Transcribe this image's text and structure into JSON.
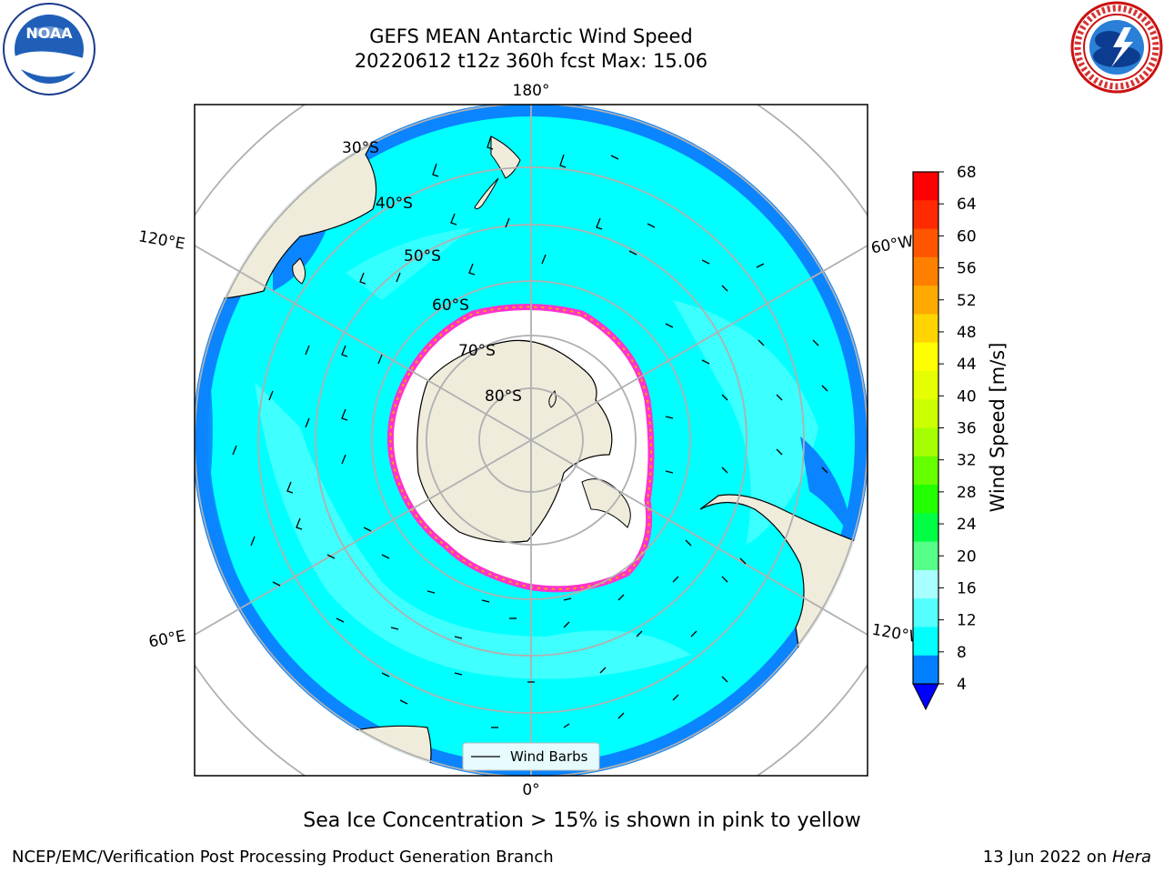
{
  "title": {
    "line1": "GEFS MEAN Antarctic Wind Speed",
    "line2": "20220612 t12z 360h fcst   Max: 15.06"
  },
  "map": {
    "projection": "south-polar-stereographic",
    "longitude_labels": {
      "top": "180°",
      "bottom": "0°",
      "upper_left": "120°E",
      "upper_right": "120°W",
      "lower_left": "60°E",
      "lower_right": "60°W"
    },
    "latitude_labels": [
      "30°S",
      "40°S",
      "50°S",
      "60°S",
      "70°S",
      "80°S"
    ],
    "legend_label": "Wind Barbs",
    "colors": {
      "land": "#efecdc",
      "ice": "#ffffff",
      "wind_8_12": "#00ffff",
      "wind_12_16": "#33eeff",
      "wind_4_8": "#0080ff",
      "sea_ice_edge": "#ff33cc",
      "graticule": "#b0b0b0"
    }
  },
  "colorbar": {
    "title": "Wind Speed [m/s]",
    "ticks": [
      "68",
      "64",
      "60",
      "56",
      "52",
      "48",
      "44",
      "40",
      "36",
      "32",
      "28",
      "24",
      "20",
      "16",
      "12",
      "8",
      "4"
    ],
    "colors": [
      "#ff0000",
      "#ff2a00",
      "#ff5500",
      "#ff8000",
      "#ffaa00",
      "#ffd400",
      "#ffff00",
      "#e5ff00",
      "#ccff00",
      "#a6ff00",
      "#66ff00",
      "#22ff00",
      "#00ff44",
      "#55ff88",
      "#a8ffff",
      "#55ffff",
      "#00ffff",
      "#0080ff"
    ],
    "extend_color": "#0000ff"
  },
  "caption": "Sea Ice Concentration > 15% is shown in pink to yellow",
  "credit": "NCEP/EMC/Verification Post Processing Product Generation Branch",
  "datestamp": {
    "text": "13 Jun 2022 on ",
    "host": "Hera"
  },
  "logos": {
    "left_text": "NOAA",
    "right_text": "NATIONAL WEATHER SERVICE"
  }
}
